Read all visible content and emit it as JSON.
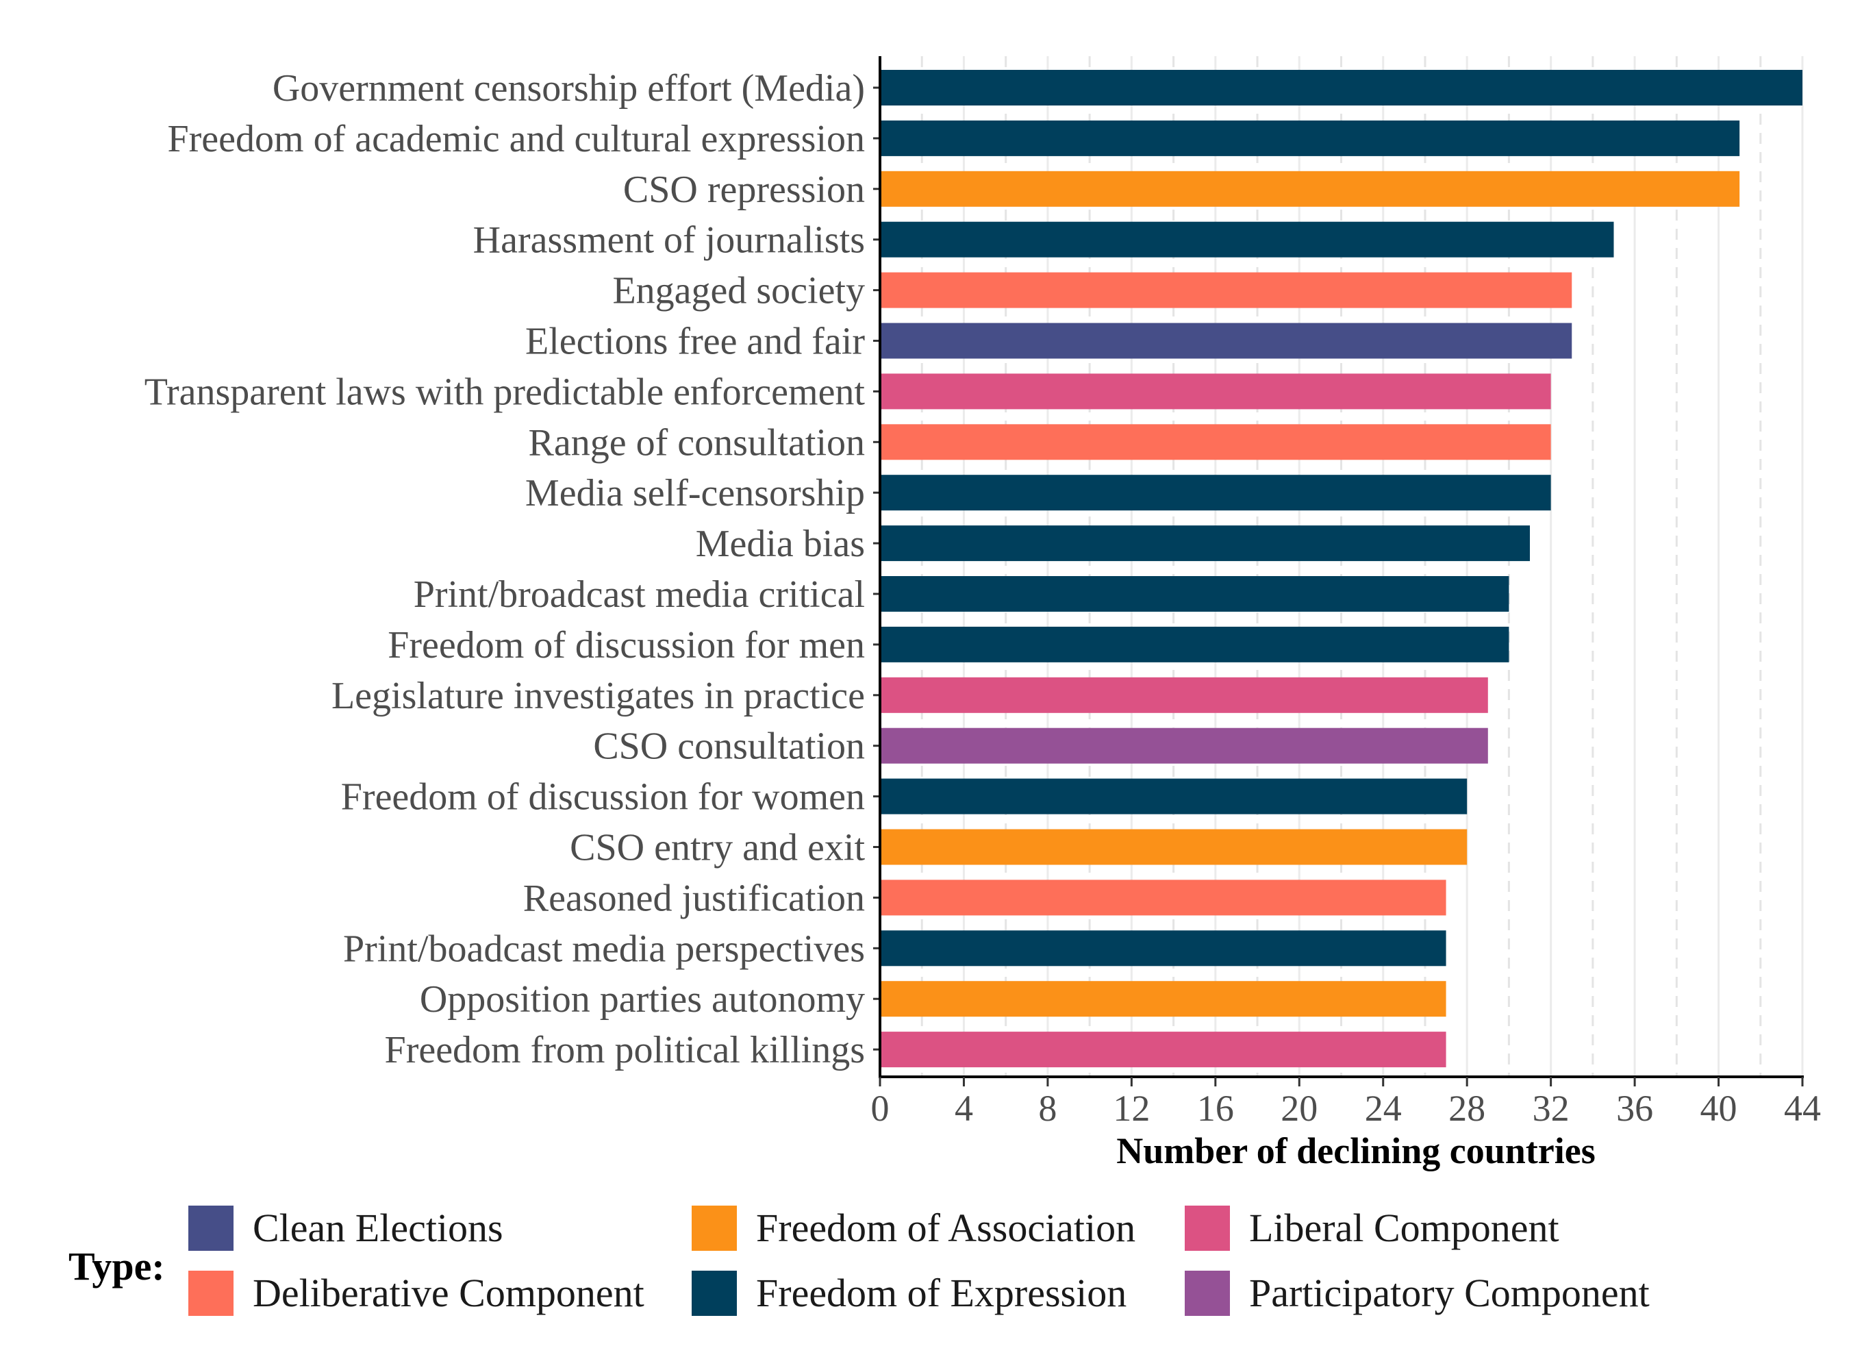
{
  "chart_data": {
    "type": "bar",
    "orientation": "horizontal",
    "xlabel": "Number of declining countries",
    "xlim": [
      0,
      44
    ],
    "xticks": [
      0,
      4,
      8,
      12,
      16,
      20,
      24,
      28,
      32,
      36,
      40,
      44
    ],
    "grid": "vertical",
    "legend": {
      "title": "Type:",
      "placement": "bottom",
      "items": [
        {
          "name": "Clean Elections",
          "color": "#464e88"
        },
        {
          "name": "Freedom of Association",
          "color": "#fb9118"
        },
        {
          "name": "Liberal Component",
          "color": "#dc5283"
        },
        {
          "name": "Deliberative Component",
          "color": "#fe6f59"
        },
        {
          "name": "Freedom of Expression",
          "color": "#003f5c"
        },
        {
          "name": "Participatory Component",
          "color": "#955196"
        }
      ]
    },
    "bars": [
      {
        "label": "Government censorship effort (Media)",
        "value": 44,
        "type": "Freedom of Expression"
      },
      {
        "label": "Freedom of academic and cultural expression",
        "value": 41,
        "type": "Freedom of Expression"
      },
      {
        "label": "CSO repression",
        "value": 41,
        "type": "Freedom of Association"
      },
      {
        "label": "Harassment of journalists",
        "value": 35,
        "type": "Freedom of Expression"
      },
      {
        "label": "Engaged society",
        "value": 33,
        "type": "Deliberative Component"
      },
      {
        "label": "Elections free and fair",
        "value": 33,
        "type": "Clean Elections"
      },
      {
        "label": "Transparent laws with predictable enforcement",
        "value": 32,
        "type": "Liberal Component"
      },
      {
        "label": "Range of consultation",
        "value": 32,
        "type": "Deliberative Component"
      },
      {
        "label": "Media self-censorship",
        "value": 32,
        "type": "Freedom of Expression"
      },
      {
        "label": "Media bias",
        "value": 31,
        "type": "Freedom of Expression"
      },
      {
        "label": "Print/broadcast media critical",
        "value": 30,
        "type": "Freedom of Expression"
      },
      {
        "label": "Freedom of discussion for men",
        "value": 30,
        "type": "Freedom of Expression"
      },
      {
        "label": "Legislature investigates in practice",
        "value": 29,
        "type": "Liberal Component"
      },
      {
        "label": "CSO consultation",
        "value": 29,
        "type": "Participatory Component"
      },
      {
        "label": "Freedom of discussion for women",
        "value": 28,
        "type": "Freedom of Expression"
      },
      {
        "label": "CSO entry and exit",
        "value": 28,
        "type": "Freedom of Association"
      },
      {
        "label": "Reasoned justification",
        "value": 27,
        "type": "Deliberative Component"
      },
      {
        "label": "Print/boadcast media perspectives",
        "value": 27,
        "type": "Freedom of Expression"
      },
      {
        "label": "Opposition parties autonomy",
        "value": 27,
        "type": "Freedom of Association"
      },
      {
        "label": "Freedom from political killings",
        "value": 27,
        "type": "Liberal Component"
      }
    ]
  }
}
